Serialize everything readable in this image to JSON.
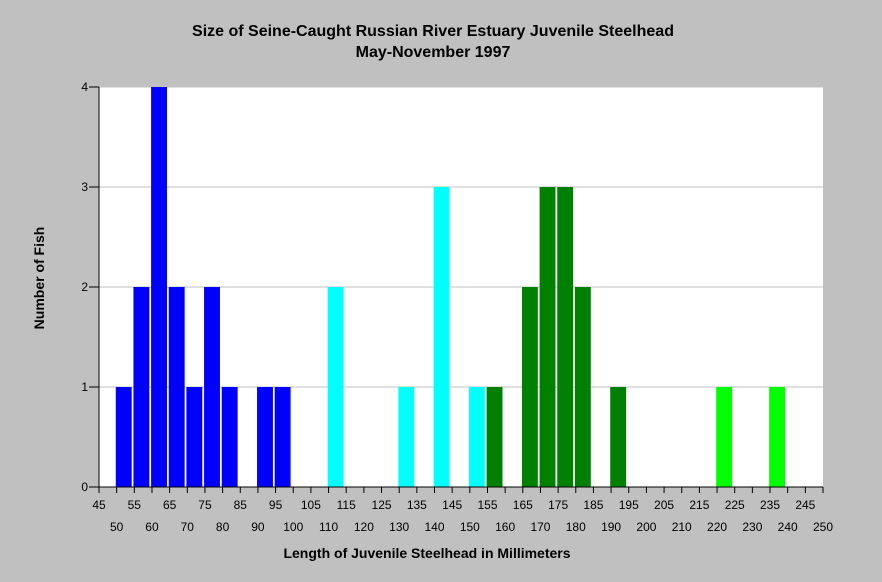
{
  "chart_data": {
    "type": "bar",
    "title": "Size of Seine-Caught Russian River Estuary Juvenile Steelhead",
    "subtitle": "May-November 1997",
    "xlabel": "Length of Juvenile Steelhead in Millimeters",
    "ylabel": "Number of Fish",
    "xlim": [
      45,
      250
    ],
    "ylim": [
      0,
      4
    ],
    "grid": true,
    "bin_width": 5,
    "x_ticks_top": [
      "45",
      "55",
      "65",
      "75",
      "85",
      "95",
      "105",
      "115",
      "125",
      "135",
      "145",
      "155",
      "165",
      "175",
      "185",
      "195",
      "205",
      "215",
      "225",
      "235",
      "245"
    ],
    "x_ticks_bottom": [
      "50",
      "60",
      "70",
      "80",
      "90",
      "100",
      "110",
      "120",
      "130",
      "140",
      "150",
      "160",
      "170",
      "180",
      "190",
      "200",
      "210",
      "220",
      "230",
      "240",
      "250"
    ],
    "y_ticks": [
      "0",
      "1",
      "2",
      "3",
      "4"
    ],
    "colors": {
      "background": "#c0c0c0",
      "plot_area": "#ffffff",
      "grid": "#c0c0c0",
      "blue": "#0000ff",
      "cyan": "#00ffff",
      "dark_green": "#008000",
      "light_green": "#00ff00"
    },
    "series": [
      {
        "color_key": "blue",
        "x": [
          52,
          57,
          62,
          67,
          72,
          77,
          82,
          92,
          97
        ],
        "values": [
          1,
          2,
          4,
          2,
          1,
          2,
          1,
          1,
          1
        ]
      },
      {
        "color_key": "cyan",
        "x": [
          112,
          132,
          142,
          152
        ],
        "values": [
          2,
          1,
          3,
          1
        ]
      },
      {
        "color_key": "dark_green",
        "x": [
          157,
          167,
          172,
          177,
          182,
          192
        ],
        "values": [
          1,
          2,
          3,
          3,
          2,
          1
        ]
      },
      {
        "color_key": "light_green",
        "x": [
          222,
          237
        ],
        "values": [
          1,
          1
        ]
      }
    ]
  }
}
